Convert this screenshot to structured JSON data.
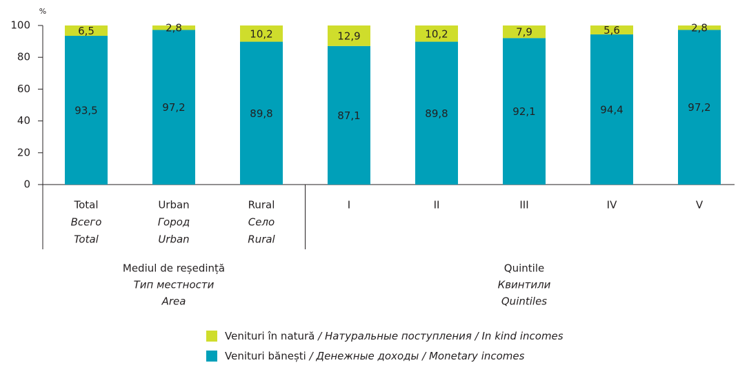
{
  "chart_data": {
    "type": "stacked_bar",
    "y_unit": "%",
    "categories": [
      [
        "Total",
        "Всего",
        "Total"
      ],
      [
        "Urban",
        "Город",
        "Urban"
      ],
      [
        "Rural",
        "Село",
        "Rural"
      ],
      [
        "I"
      ],
      [
        "II"
      ],
      [
        "III"
      ],
      [
        "IV"
      ],
      [
        "V"
      ]
    ],
    "groups": [
      {
        "label": [
          "Mediul de reședință",
          "Тип местности",
          "Area"
        ],
        "from": 0,
        "to": 2
      },
      {
        "label": [
          "Quintile",
          "Квинтили",
          "Quintiles"
        ],
        "from": 3,
        "to": 7
      }
    ],
    "series": [
      {
        "name": "Venituri bănești / Денежные доходы / Monetary incomes",
        "color": "#00a0b9",
        "values": [
          93.5,
          97.2,
          89.8,
          87.1,
          89.8,
          92.1,
          94.4,
          97.2
        ],
        "value_labels": [
          "93,5",
          "97,2",
          "89,8",
          "87,1",
          "89,8",
          "92,1",
          "94,4",
          "97,2"
        ]
      },
      {
        "name": "Venituri în natură / Натуральные поступления / In kind incomes",
        "color": "#cfdd2c",
        "values": [
          6.5,
          2.8,
          10.2,
          12.9,
          10.2,
          7.9,
          5.6,
          2.8
        ],
        "value_labels": [
          "6,5",
          "2,8",
          "10,2",
          "12,9",
          "10,2",
          "7,9",
          "5,6",
          "2,8"
        ]
      }
    ],
    "ylim": [
      0,
      100
    ],
    "yticks": [
      0,
      20,
      40,
      60,
      80,
      100
    ],
    "grid": false
  }
}
